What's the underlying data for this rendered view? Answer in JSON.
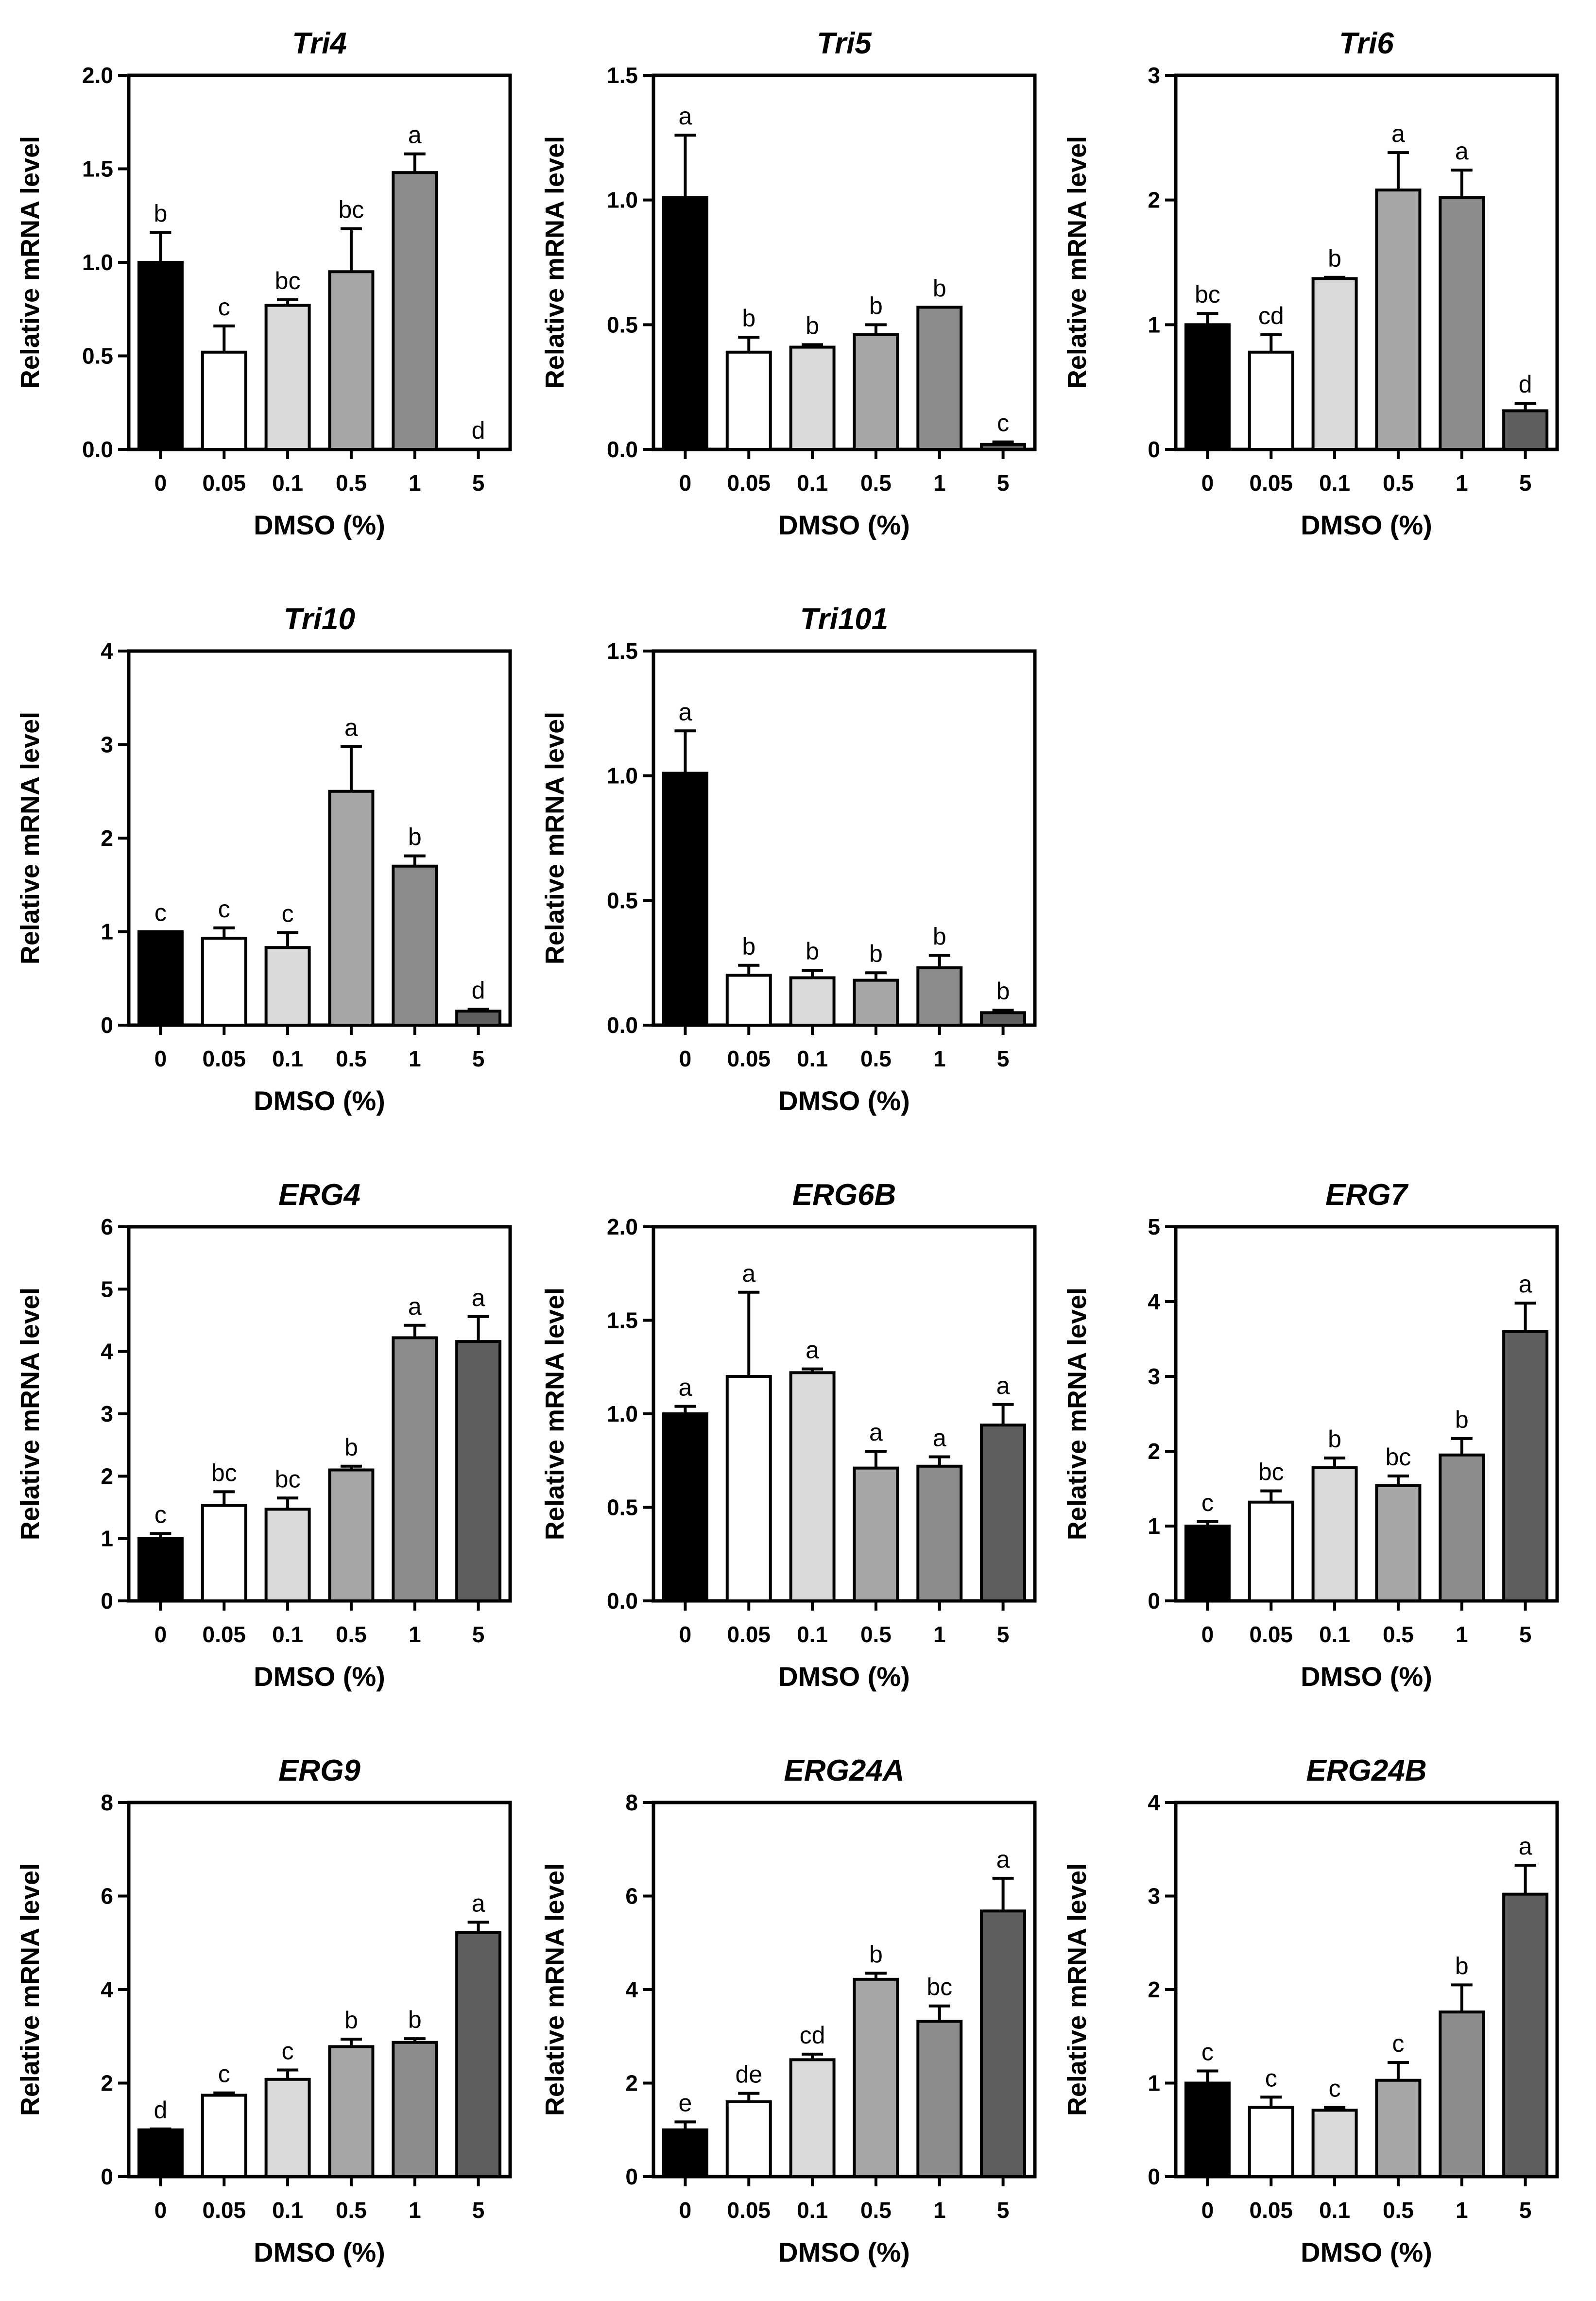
{
  "figure": {
    "panel_count": 11
  },
  "chart_data": [
    {
      "type": "bar",
      "title": "Tri4",
      "xlabel": "DMSO (%)",
      "ylabel": "Relative mRNA level",
      "categories": [
        "0",
        "0.05",
        "0.1",
        "0.5",
        "1",
        "5"
      ],
      "values": [
        1.0,
        0.52,
        0.77,
        0.95,
        1.48,
        0.0
      ],
      "errors": [
        0.16,
        0.14,
        0.03,
        0.23,
        0.1,
        0.0
      ],
      "letters": [
        "b",
        "c",
        "bc",
        "bc",
        "a",
        "d"
      ],
      "colors": [
        "#000000",
        "#ffffff",
        "#d9d9d9",
        "#a6a6a6",
        "#8c8c8c",
        "#5e5e5e"
      ],
      "ylim": [
        0,
        2.0
      ],
      "yticks": [
        "0.0",
        "0.5",
        "1.0",
        "1.5",
        "2.0"
      ]
    },
    {
      "type": "bar",
      "title": "Tri5",
      "xlabel": "DMSO (%)",
      "ylabel": "Relative mRNA level",
      "categories": [
        "0",
        "0.05",
        "0.1",
        "0.5",
        "1",
        "5"
      ],
      "values": [
        1.01,
        0.39,
        0.41,
        0.46,
        0.57,
        0.02
      ],
      "errors": [
        0.25,
        0.06,
        0.01,
        0.04,
        0.0,
        0.01
      ],
      "letters": [
        "a",
        "b",
        "b",
        "b",
        "b",
        "c"
      ],
      "colors": [
        "#000000",
        "#ffffff",
        "#d9d9d9",
        "#a6a6a6",
        "#8c8c8c",
        "#5e5e5e"
      ],
      "ylim": [
        0,
        1.5
      ],
      "yticks": [
        "0.0",
        "0.5",
        "1.0",
        "1.5"
      ]
    },
    {
      "type": "bar",
      "title": "Tri6",
      "xlabel": "DMSO (%)",
      "ylabel": "Relative mRNA level",
      "categories": [
        "0",
        "0.05",
        "0.1",
        "0.5",
        "1",
        "5"
      ],
      "values": [
        1.0,
        0.78,
        1.37,
        2.08,
        2.02,
        0.31
      ],
      "errors": [
        0.09,
        0.14,
        0.01,
        0.3,
        0.22,
        0.06
      ],
      "letters": [
        "bc",
        "cd",
        "b",
        "a",
        "a",
        "d"
      ],
      "colors": [
        "#000000",
        "#ffffff",
        "#d9d9d9",
        "#a6a6a6",
        "#8c8c8c",
        "#5e5e5e"
      ],
      "ylim": [
        0,
        3
      ],
      "yticks": [
        "0",
        "1",
        "2",
        "3"
      ]
    },
    {
      "type": "bar",
      "title": "Tri10",
      "xlabel": "DMSO (%)",
      "ylabel": "Relative mRNA level",
      "categories": [
        "0",
        "0.05",
        "0.1",
        "0.5",
        "1",
        "5"
      ],
      "values": [
        1.0,
        0.93,
        0.83,
        2.5,
        1.7,
        0.15
      ],
      "errors": [
        0.0,
        0.11,
        0.16,
        0.48,
        0.11,
        0.02
      ],
      "letters": [
        "c",
        "c",
        "c",
        "a",
        "b",
        "d"
      ],
      "colors": [
        "#000000",
        "#ffffff",
        "#d9d9d9",
        "#a6a6a6",
        "#8c8c8c",
        "#5e5e5e"
      ],
      "ylim": [
        0,
        4
      ],
      "yticks": [
        "0",
        "1",
        "2",
        "3",
        "4"
      ]
    },
    {
      "type": "bar",
      "title": "Tri101",
      "xlabel": "DMSO (%)",
      "ylabel": "Relative mRNA level",
      "categories": [
        "0",
        "0.05",
        "0.1",
        "0.5",
        "1",
        "5"
      ],
      "values": [
        1.01,
        0.2,
        0.19,
        0.18,
        0.23,
        0.05
      ],
      "errors": [
        0.17,
        0.04,
        0.03,
        0.03,
        0.05,
        0.01
      ],
      "letters": [
        "a",
        "b",
        "b",
        "b",
        "b",
        "b"
      ],
      "colors": [
        "#000000",
        "#ffffff",
        "#d9d9d9",
        "#a6a6a6",
        "#8c8c8c",
        "#5e5e5e"
      ],
      "ylim": [
        0,
        1.5
      ],
      "yticks": [
        "0.0",
        "0.5",
        "1.0",
        "1.5"
      ]
    },
    {
      "type": "bar",
      "title": "ERG4",
      "xlabel": "DMSO (%)",
      "ylabel": "Relative mRNA level",
      "categories": [
        "0",
        "0.05",
        "0.1",
        "0.5",
        "1",
        "5"
      ],
      "values": [
        1.0,
        1.53,
        1.47,
        2.1,
        4.22,
        4.16
      ],
      "errors": [
        0.08,
        0.22,
        0.18,
        0.06,
        0.2,
        0.4
      ],
      "letters": [
        "c",
        "bc",
        "bc",
        "b",
        "a",
        "a"
      ],
      "colors": [
        "#000000",
        "#ffffff",
        "#d9d9d9",
        "#a6a6a6",
        "#8c8c8c",
        "#5e5e5e"
      ],
      "ylim": [
        0,
        6
      ],
      "yticks": [
        "0",
        "1",
        "2",
        "3",
        "4",
        "5",
        "6"
      ]
    },
    {
      "type": "bar",
      "title": "ERG6B",
      "xlabel": "DMSO (%)",
      "ylabel": "Relative mRNA level",
      "categories": [
        "0",
        "0.05",
        "0.1",
        "0.5",
        "1",
        "5"
      ],
      "values": [
        1.0,
        1.2,
        1.22,
        0.71,
        0.72,
        0.94
      ],
      "errors": [
        0.04,
        0.45,
        0.02,
        0.09,
        0.05,
        0.11
      ],
      "letters": [
        "a",
        "a",
        "a",
        "a",
        "a",
        "a"
      ],
      "colors": [
        "#000000",
        "#ffffff",
        "#d9d9d9",
        "#a6a6a6",
        "#8c8c8c",
        "#5e5e5e"
      ],
      "ylim": [
        0,
        2.0
      ],
      "yticks": [
        "0.0",
        "0.5",
        "1.0",
        "1.5",
        "2.0"
      ]
    },
    {
      "type": "bar",
      "title": "ERG7",
      "xlabel": "DMSO (%)",
      "ylabel": "Relative mRNA level",
      "categories": [
        "0",
        "0.05",
        "0.1",
        "0.5",
        "1",
        "5"
      ],
      "values": [
        1.0,
        1.32,
        1.78,
        1.54,
        1.95,
        3.6
      ],
      "errors": [
        0.06,
        0.15,
        0.13,
        0.13,
        0.22,
        0.38
      ],
      "letters": [
        "c",
        "bc",
        "b",
        "bc",
        "b",
        "a"
      ],
      "colors": [
        "#000000",
        "#ffffff",
        "#d9d9d9",
        "#a6a6a6",
        "#8c8c8c",
        "#5e5e5e"
      ],
      "ylim": [
        0,
        5
      ],
      "yticks": [
        "0",
        "1",
        "2",
        "3",
        "4",
        "5"
      ]
    },
    {
      "type": "bar",
      "title": "ERG9",
      "xlabel": "DMSO (%)",
      "ylabel": "Relative mRNA level",
      "categories": [
        "0",
        "0.05",
        "0.1",
        "0.5",
        "1",
        "5"
      ],
      "values": [
        1.0,
        1.74,
        2.08,
        2.78,
        2.87,
        5.22
      ],
      "errors": [
        0.02,
        0.05,
        0.2,
        0.16,
        0.08,
        0.22
      ],
      "letters": [
        "d",
        "c",
        "c",
        "b",
        "b",
        "a"
      ],
      "colors": [
        "#000000",
        "#ffffff",
        "#d9d9d9",
        "#a6a6a6",
        "#8c8c8c",
        "#5e5e5e"
      ],
      "ylim": [
        0,
        8
      ],
      "yticks": [
        "0",
        "2",
        "4",
        "6",
        "8"
      ]
    },
    {
      "type": "bar",
      "title": "ERG24A",
      "xlabel": "DMSO (%)",
      "ylabel": "Relative mRNA level",
      "categories": [
        "0",
        "0.05",
        "0.1",
        "0.5",
        "1",
        "5"
      ],
      "values": [
        1.0,
        1.6,
        2.5,
        4.22,
        3.32,
        5.68
      ],
      "errors": [
        0.17,
        0.18,
        0.12,
        0.13,
        0.33,
        0.7
      ],
      "letters": [
        "e",
        "de",
        "cd",
        "b",
        "bc",
        "a"
      ],
      "colors": [
        "#000000",
        "#ffffff",
        "#d9d9d9",
        "#a6a6a6",
        "#8c8c8c",
        "#5e5e5e"
      ],
      "ylim": [
        0,
        8
      ],
      "yticks": [
        "0",
        "2",
        "4",
        "6",
        "8"
      ]
    },
    {
      "type": "bar",
      "title": "ERG24B",
      "xlabel": "DMSO (%)",
      "ylabel": "Relative mRNA level",
      "categories": [
        "0",
        "0.05",
        "0.1",
        "0.5",
        "1",
        "5"
      ],
      "values": [
        1.0,
        0.74,
        0.71,
        1.03,
        1.76,
        3.02
      ],
      "errors": [
        0.13,
        0.11,
        0.03,
        0.19,
        0.29,
        0.31
      ],
      "letters": [
        "c",
        "c",
        "c",
        "c",
        "b",
        "a"
      ],
      "colors": [
        "#000000",
        "#ffffff",
        "#d9d9d9",
        "#a6a6a6",
        "#8c8c8c",
        "#5e5e5e"
      ],
      "ylim": [
        0,
        4
      ],
      "yticks": [
        "0",
        "1",
        "2",
        "3",
        "4"
      ]
    }
  ]
}
